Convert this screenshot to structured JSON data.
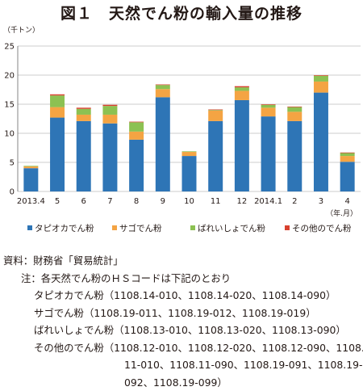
{
  "title": "図１　天然でん粉の輸入量の推移",
  "chart_data": {
    "type": "bar",
    "stacked": true,
    "ylabel": "（千トン）",
    "xlabel": "（年.月）",
    "ylim": [
      0,
      25
    ],
    "yticks": [
      0,
      5,
      10,
      15,
      20,
      25
    ],
    "grid": true,
    "legend_position": "bottom",
    "categories": [
      "2013.4",
      "5",
      "6",
      "7",
      "8",
      "9",
      "10",
      "11",
      "12",
      "2014.1",
      "2",
      "3",
      "4"
    ],
    "series": [
      {
        "name": "タピオカでん粉",
        "color": "#2e75b6",
        "values": [
          4.0,
          12.7,
          12.1,
          11.7,
          8.9,
          16.2,
          6.1,
          12.1,
          15.7,
          12.9,
          12.1,
          17.0,
          5.1
        ]
      },
      {
        "name": "サゴでん粉",
        "color": "#f4a443",
        "values": [
          0.3,
          1.8,
          1.1,
          1.5,
          1.4,
          1.4,
          0.7,
          1.8,
          1.6,
          1.5,
          1.6,
          1.9,
          1.0
        ]
      },
      {
        "name": "ばれいしょでん粉",
        "color": "#8cc152",
        "values": [
          0.1,
          2.0,
          1.0,
          1.5,
          1.6,
          0.7,
          0.1,
          0.1,
          0.6,
          0.5,
          0.8,
          1.0,
          0.5
        ]
      },
      {
        "name": "その他のでん粉",
        "color": "#d8412f",
        "values": [
          0.0,
          0.2,
          0.2,
          0.2,
          0.1,
          0.1,
          0.0,
          0.1,
          0.2,
          0.1,
          0.1,
          0.1,
          0.1
        ]
      }
    ]
  },
  "notes": {
    "source": "資料：財務省「貿易統計」",
    "note_head": "注：各天然でん粉のＨＳコードは下記のとおり",
    "items": [
      {
        "label": "タピオカでん粉",
        "codes": "（1108.14-010、1108.14-020、1108.14-090）"
      },
      {
        "label": "サゴでん粉",
        "codes": "（1108.19-011、1108.19-012、1108.19-019）"
      },
      {
        "label": "ばれいしょでん粉",
        "codes": "（1108.13-010、1108.13-020、1108.13-090）"
      },
      {
        "label": "その他のでん粉",
        "codes": "（1108.12-010、1108.12-020、1108.12-090、1108.",
        "codes_cont1": "11-010、1108.11-090、1108.19-091、1108.19-",
        "codes_cont2": "092、1108.19-099）"
      }
    ]
  }
}
